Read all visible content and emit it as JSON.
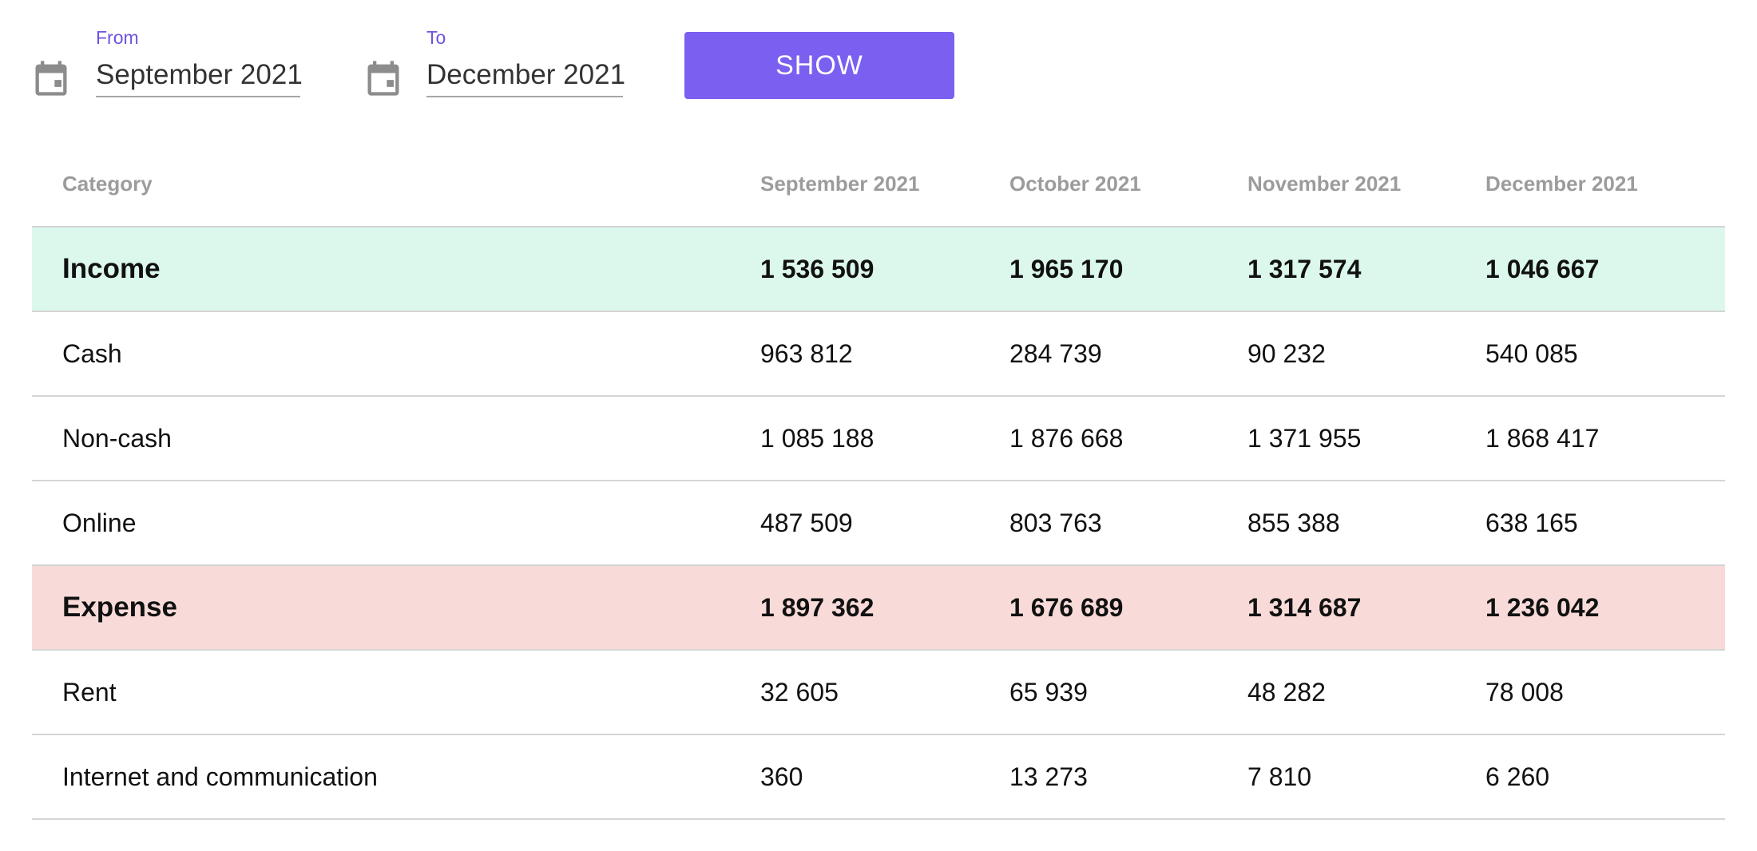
{
  "filters": {
    "from": {
      "label": "From",
      "value": "September 2021",
      "icon": "calendar-icon"
    },
    "to": {
      "label": "To",
      "value": "December 2021",
      "icon": "calendar-icon"
    },
    "show_label": "SHOW"
  },
  "colors": {
    "accent": "#7b5ff0",
    "income_row": "#dcf8ec",
    "expense_row": "#f8dbd8"
  },
  "table": {
    "headers": [
      "Category",
      "September 2021",
      "October 2021",
      "November 2021",
      "December 2021"
    ],
    "rows": [
      {
        "type": "income",
        "category": "Income",
        "values": [
          "1 536 509",
          "1 965 170",
          "1 317 574",
          "1 046 667"
        ]
      },
      {
        "type": "item",
        "category": "Cash",
        "values": [
          "963 812",
          "284 739",
          "90 232",
          "540 085"
        ]
      },
      {
        "type": "item",
        "category": "Non-cash",
        "values": [
          "1 085 188",
          "1 876 668",
          "1 371 955",
          "1 868 417"
        ]
      },
      {
        "type": "item",
        "category": "Online",
        "values": [
          "487 509",
          "803 763",
          "855 388",
          "638 165"
        ]
      },
      {
        "type": "expense",
        "category": "Expense",
        "values": [
          "1 897 362",
          "1 676 689",
          "1 314 687",
          "1 236 042"
        ]
      },
      {
        "type": "item",
        "category": "Rent",
        "values": [
          "32 605",
          "65 939",
          "48 282",
          "78 008"
        ]
      },
      {
        "type": "item",
        "category": "Internet and communication",
        "values": [
          "360",
          "13 273",
          "7 810",
          "6 260"
        ]
      }
    ]
  }
}
